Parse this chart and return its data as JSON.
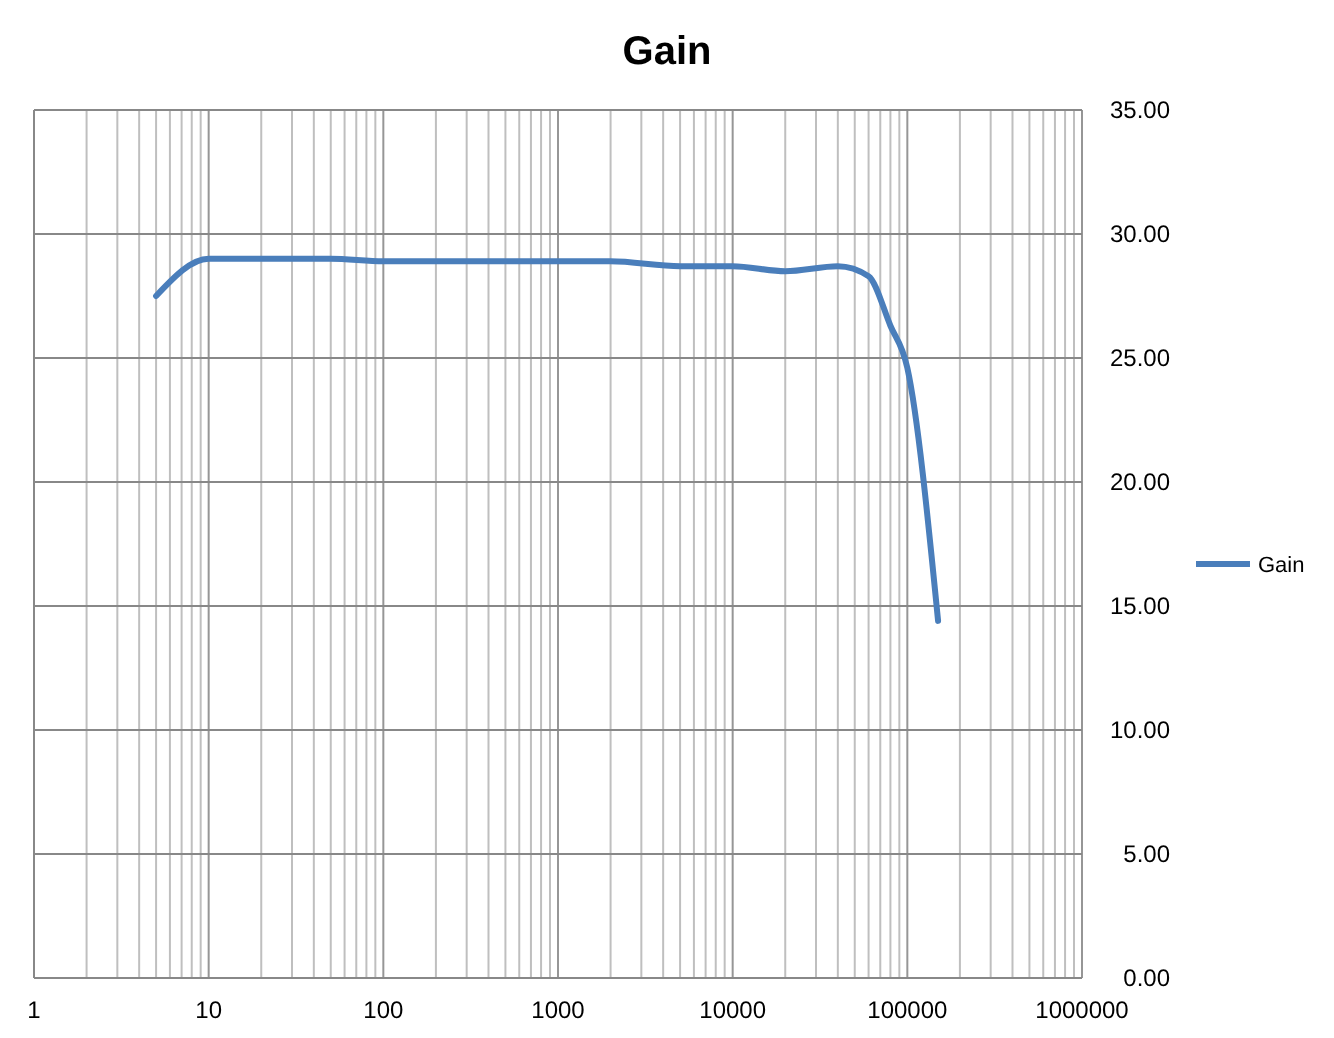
{
  "chart_data": {
    "type": "line",
    "title": "Gain",
    "log": "x",
    "grid": true,
    "legend": "right",
    "line_style": "solid",
    "marker": "none",
    "xlim": [
      1,
      1000000
    ],
    "xticks": [
      1,
      10,
      100,
      1000,
      10000,
      100000,
      1000000
    ],
    "ylim": [
      0,
      35
    ],
    "yticks": [
      {
        "value": 0,
        "label": "0.00"
      },
      {
        "value": 5,
        "label": "5.00"
      },
      {
        "value": 10,
        "label": "10.00"
      },
      {
        "value": 15,
        "label": "15.00"
      },
      {
        "value": 20,
        "label": "20.00"
      },
      {
        "value": 25,
        "label": "25.00"
      },
      {
        "value": 30,
        "label": "30.00"
      },
      {
        "value": 35,
        "label": "35.00"
      }
    ],
    "x": [
      5,
      10,
      20,
      50,
      100,
      200,
      500,
      1000,
      2000,
      5000,
      10000,
      20000,
      40000,
      60000,
      80000,
      100000,
      150000
    ],
    "series": [
      {
        "name": "Gain",
        "color": "#4a7ebb",
        "values": [
          27.5,
          29.0,
          29.0,
          29.0,
          28.9,
          28.9,
          28.9,
          28.9,
          28.9,
          28.7,
          28.7,
          28.5,
          28.7,
          28.3,
          26.3,
          24.6,
          14.4
        ]
      }
    ]
  }
}
